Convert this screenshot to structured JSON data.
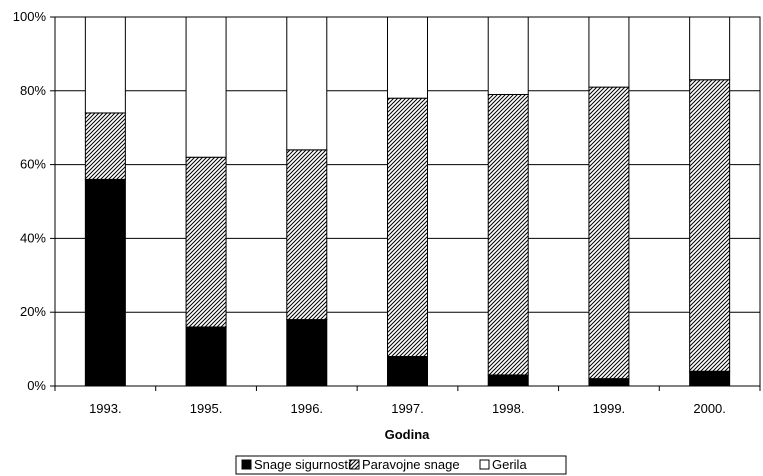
{
  "chart_data": {
    "type": "bar",
    "stacked": "percent",
    "categories": [
      "1993.",
      "1995.",
      "1996.",
      "1997.",
      "1998.",
      "1999.",
      "2000."
    ],
    "series": [
      {
        "name": "Snage sigurnosti",
        "values": [
          56,
          16,
          18,
          8,
          3,
          2,
          4
        ],
        "color": "#000000",
        "pattern": "solid"
      },
      {
        "name": "Paravojne snage",
        "values": [
          18,
          46,
          46,
          70,
          76,
          79,
          79
        ],
        "color": "#000000",
        "pattern": "diagonal-hatch"
      },
      {
        "name": "Gerila",
        "values": [
          26,
          38,
          36,
          22,
          21,
          19,
          17
        ],
        "color": "#ffffff",
        "pattern": "none"
      }
    ],
    "title": "",
    "xlabel": "Godina",
    "ylabel": "",
    "ylim": [
      0,
      100
    ],
    "yticks": [
      "0%",
      "20%",
      "40%",
      "60%",
      "80%",
      "100%"
    ],
    "grid": true,
    "legend": "bottom"
  }
}
